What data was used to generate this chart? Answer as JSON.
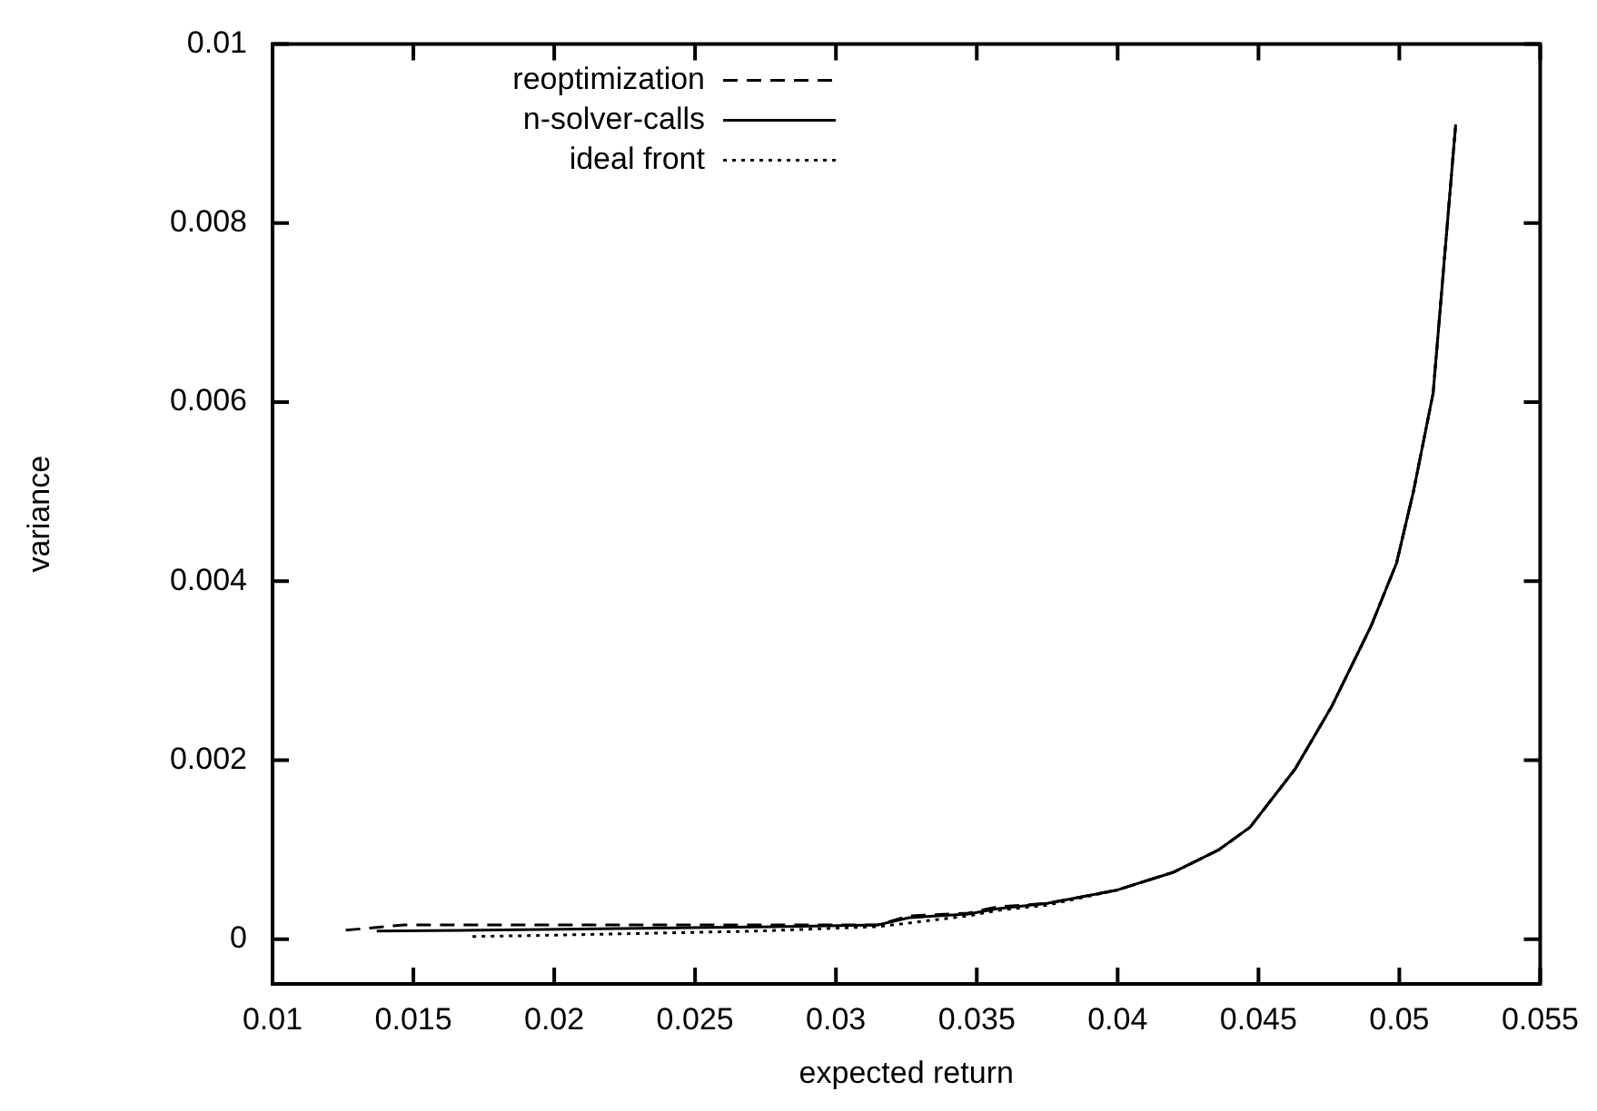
{
  "chart_data": {
    "type": "line",
    "xlabel": "expected return",
    "ylabel": "variance",
    "xlim": [
      0.01,
      0.055
    ],
    "xticks": [
      0.01,
      0.015,
      0.02,
      0.025,
      0.03,
      0.035,
      0.04,
      0.045,
      0.05,
      0.055
    ],
    "ylim": [
      -0.0005,
      0.01
    ],
    "yticks": [
      0,
      0.002,
      0.004,
      0.006,
      0.008,
      0.01
    ],
    "grid": false,
    "legend": "top left",
    "marker": "none",
    "series": [
      {
        "name": "reoptimization",
        "color": "#000000",
        "line_style": "dashed",
        "x": [
          0.0126,
          0.0147,
          0.0287,
          0.0315,
          0.0326,
          0.0347,
          0.0357,
          0.0375,
          0.04,
          0.042,
          0.0436,
          0.0447,
          0.0463,
          0.0476,
          0.049,
          0.0499,
          0.0505,
          0.0512,
          0.0516,
          0.052
        ],
        "values": [
          0.0001,
          0.00016,
          0.00016,
          0.00016,
          0.00026,
          0.00029,
          0.00036,
          0.0004,
          0.00055,
          0.00075,
          0.001,
          0.00125,
          0.0019,
          0.0026,
          0.0035,
          0.0042,
          0.005,
          0.0061,
          0.0076,
          0.0091
        ]
      },
      {
        "name": "n-solver-calls",
        "color": "#000000",
        "line_style": "solid",
        "x": [
          0.0137,
          0.0203,
          0.0278,
          0.0315,
          0.0326,
          0.0347,
          0.0357,
          0.0375,
          0.04,
          0.042,
          0.0436,
          0.0447,
          0.0463,
          0.0476,
          0.049,
          0.0499,
          0.0505,
          0.0512,
          0.0516,
          0.052
        ],
        "values": [
          9e-05,
          0.00011,
          0.00014,
          0.00016,
          0.00024,
          0.00028,
          0.00034,
          0.0004,
          0.00055,
          0.00075,
          0.001,
          0.00125,
          0.0019,
          0.0026,
          0.0035,
          0.0042,
          0.005,
          0.0061,
          0.0076,
          0.0091
        ]
      },
      {
        "name": "ideal front",
        "color": "#000000",
        "line_style": "dotted",
        "x": [
          0.0171,
          0.0192,
          0.0272,
          0.0315,
          0.0347,
          0.0357,
          0.0375,
          0.04,
          0.042,
          0.0436,
          0.0447,
          0.0463,
          0.0476,
          0.049,
          0.0499,
          0.0505,
          0.0512,
          0.0516,
          0.052
        ],
        "values": [
          3e-05,
          4e-05,
          9e-05,
          0.00014,
          0.00026,
          0.00032,
          0.00038,
          0.00055,
          0.00075,
          0.001,
          0.00125,
          0.0019,
          0.0026,
          0.0035,
          0.0042,
          0.005,
          0.0061,
          0.0076,
          0.0091
        ]
      }
    ]
  }
}
